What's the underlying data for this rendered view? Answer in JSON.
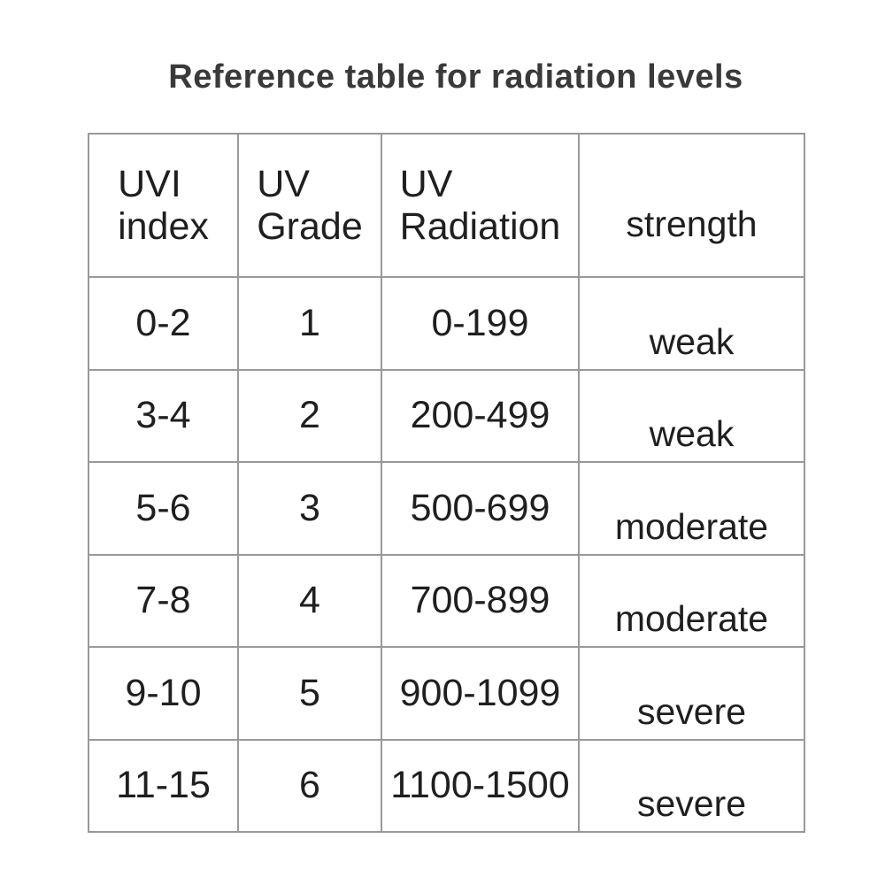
{
  "title": "Reference table for radiation levels",
  "colors": {
    "background": "#ffffff",
    "title_text": "#3a3a3a",
    "cell_text": "#1f1f1f",
    "grid_line": "#999999"
  },
  "table": {
    "headers": [
      "UVI\nindex",
      "UV\nGrade",
      "UV\nRadiation",
      "strength"
    ],
    "rows": [
      {
        "uvi": "0-2",
        "grade": "1",
        "radiation": "0-199",
        "strength": "weak"
      },
      {
        "uvi": "3-4",
        "grade": "2",
        "radiation": "200-499",
        "strength": "weak"
      },
      {
        "uvi": "5-6",
        "grade": "3",
        "radiation": "500-699",
        "strength": "moderate"
      },
      {
        "uvi": "7-8",
        "grade": "4",
        "radiation": "700-899",
        "strength": "moderate"
      },
      {
        "uvi": "9-10",
        "grade": "5",
        "radiation": "900-1099",
        "strength": "severe"
      },
      {
        "uvi": "11-15",
        "grade": "6",
        "radiation": "1100-1500",
        "strength": "severe"
      }
    ]
  },
  "chart_data": {
    "type": "table",
    "title": "Reference table for radiation levels",
    "columns": [
      "UVI index",
      "UV Grade",
      "UV Radiation",
      "strength"
    ],
    "rows": [
      [
        "0-2",
        "1",
        "0-199",
        "weak"
      ],
      [
        "3-4",
        "2",
        "200-499",
        "weak"
      ],
      [
        "5-6",
        "3",
        "500-699",
        "moderate"
      ],
      [
        "7-8",
        "4",
        "700-899",
        "moderate"
      ],
      [
        "9-10",
        "5",
        "900-1099",
        "severe"
      ],
      [
        "11-15",
        "6",
        "1100-1500",
        "severe"
      ]
    ]
  }
}
